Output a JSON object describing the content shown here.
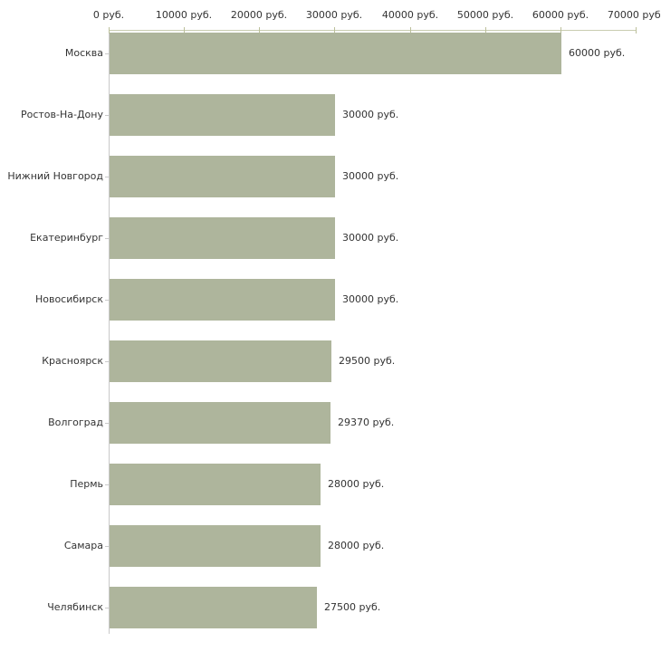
{
  "colors": {
    "bar": "#aeb59c",
    "x_axis_line": "#c9ccb0",
    "x_tick": "#bcc09b",
    "y_axis_line": "#c9c9c9",
    "y_tick": "#c9c9c9",
    "text": "#333333",
    "background": "#ffffff"
  },
  "chart_data": {
    "type": "bar",
    "orientation": "horizontal",
    "title": "",
    "xlabel": "",
    "ylabel": "",
    "xlim": [
      0,
      70000
    ],
    "grid": false,
    "legend": false,
    "unit": "руб.",
    "categories": [
      "Москва",
      "Ростов-На-Дону",
      "Нижний Новгород",
      "Екатеринбург",
      "Новосибирск",
      "Красноярск",
      "Волгоград",
      "Пермь",
      "Самара",
      "Челябинск"
    ],
    "values": [
      60000,
      30000,
      30000,
      30000,
      30000,
      29500,
      29370,
      28000,
      28000,
      27500
    ],
    "value_labels": [
      "60000 руб.",
      "30000 руб.",
      "30000 руб.",
      "30000 руб.",
      "30000 руб.",
      "29500 руб.",
      "29370 руб.",
      "28000 руб.",
      "28000 руб.",
      "27500 руб."
    ],
    "x_ticks": [
      {
        "value": 0,
        "label": "0 руб."
      },
      {
        "value": 10000,
        "label": "10000 руб."
      },
      {
        "value": 20000,
        "label": "20000 руб."
      },
      {
        "value": 30000,
        "label": "30000 руб."
      },
      {
        "value": 40000,
        "label": "40000 руб."
      },
      {
        "value": 50000,
        "label": "50000 руб."
      },
      {
        "value": 60000,
        "label": "60000 руб."
      },
      {
        "value": 70000,
        "label": "70000 руб."
      }
    ]
  }
}
